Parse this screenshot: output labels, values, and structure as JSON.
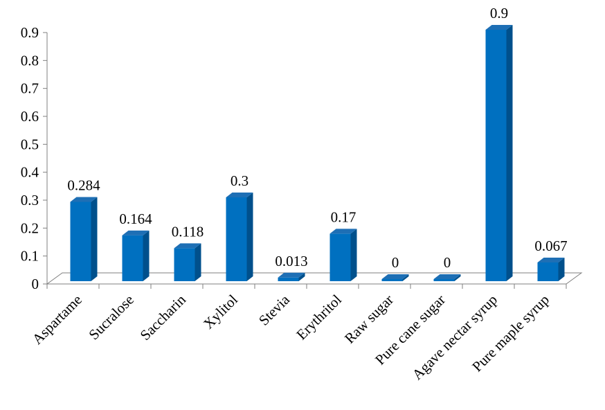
{
  "chart_data": {
    "type": "bar",
    "categories": [
      "Aspartame",
      "Sucralose",
      "Saccharin",
      "Xylitol",
      "Stevia",
      "Erythritol",
      "Raw sugar",
      "Pure cane sugar",
      "Agave nectar syrup",
      "Pure maple syrup"
    ],
    "values": [
      0.284,
      0.164,
      0.118,
      0.3,
      0.013,
      0.17,
      0,
      0,
      0.9,
      0.067
    ],
    "value_labels": [
      "0.284",
      "0.164",
      "0.118",
      "0.3",
      "0.013",
      "0.17",
      "0",
      "0",
      "0.9",
      "0.067"
    ],
    "y_ticks": [
      "0",
      "0.1",
      "0.2",
      "0.3",
      "0.4",
      "0.5",
      "0.6",
      "0.7",
      "0.8",
      "0.9"
    ],
    "ylim": [
      0,
      0.9
    ],
    "title": "",
    "xlabel": "",
    "ylabel": "",
    "grid": false,
    "legend": "none",
    "style": "3d-column",
    "colors": {
      "bar_front": "#0070C0",
      "bar_side": "#00508C",
      "bar_top": "#1E6FB5",
      "axis": "#7F7F7F",
      "text": "#000000"
    }
  }
}
